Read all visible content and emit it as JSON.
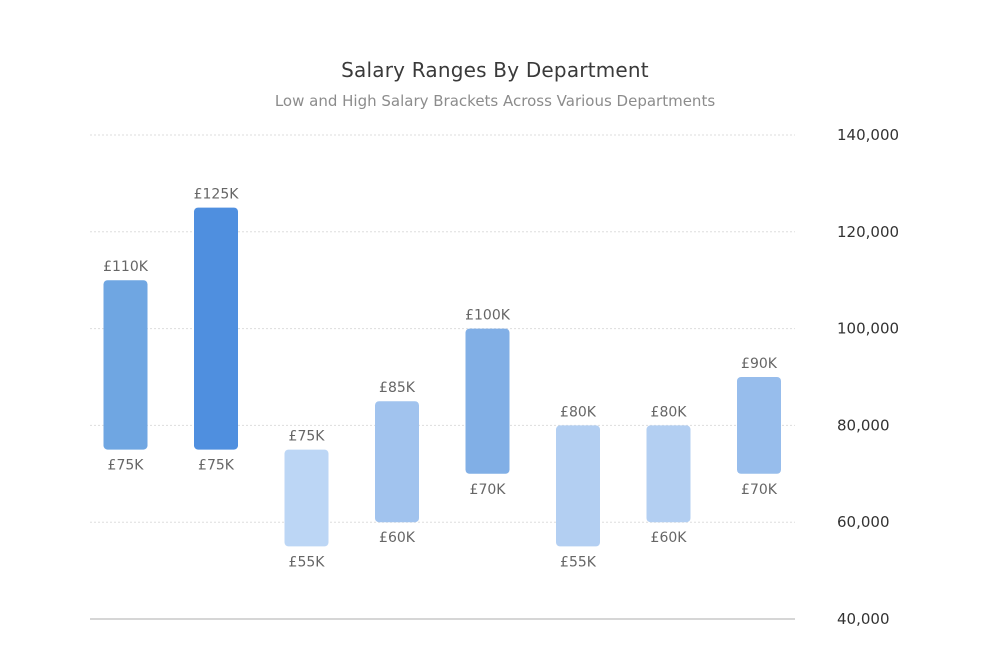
{
  "chart_data": {
    "type": "bar",
    "subtype": "range",
    "title": "Salary Ranges By Department",
    "subtitle": "Low and High Salary Brackets Across Various Departments",
    "xlabel": "",
    "ylabel": "",
    "ylim": [
      40000,
      140000
    ],
    "y_ticks": [
      40000,
      60000,
      80000,
      100000,
      120000,
      140000
    ],
    "y_tick_labels": [
      "40,000",
      "60,000",
      "80,000",
      "100,000",
      "120,000",
      "140,000"
    ],
    "y_axis_position": "right",
    "grid": true,
    "legend": false,
    "series": [
      {
        "low": [
          75000,
          75000,
          55000,
          60000,
          70000,
          55000,
          60000,
          70000
        ],
        "high": [
          110000,
          125000,
          75000,
          85000,
          100000,
          80000,
          80000,
          90000
        ],
        "low_labels": [
          "£75K",
          "£75K",
          "£55K",
          "£60K",
          "£70K",
          "£55K",
          "£60K",
          "£70K"
        ],
        "high_labels": [
          "£110K",
          "£125K",
          "£75K",
          "£85K",
          "£100K",
          "£80K",
          "£80K",
          "£90K"
        ],
        "colors": [
          "#6fa6e2",
          "#4f8fdf",
          "#bcd6f5",
          "#a1c3ee",
          "#81afe6",
          "#b3cff2",
          "#b3cff2",
          "#97bdec"
        ]
      }
    ]
  }
}
